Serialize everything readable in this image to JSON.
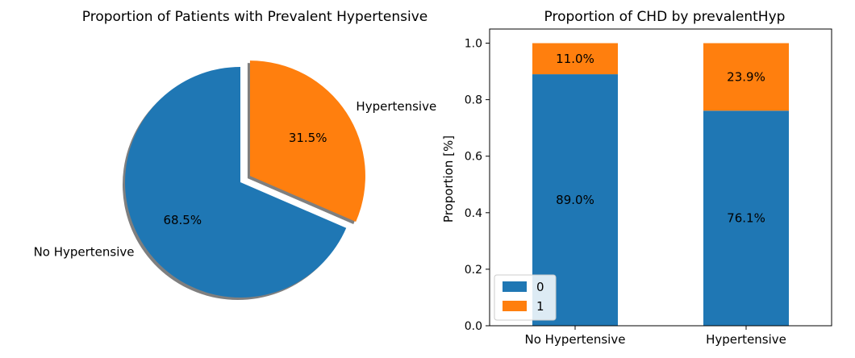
{
  "chart_data": [
    {
      "type": "pie",
      "title": "Proportion of Patients with Prevalent Hypertensive",
      "labels": [
        "No Hypertensive",
        "Hypertensive"
      ],
      "values": [
        68.5,
        31.5
      ],
      "pct_labels": [
        "68.5%",
        "31.5%"
      ],
      "colors": [
        "#1f77b4",
        "#ff7f0e"
      ],
      "explode": [
        0,
        0.1
      ],
      "shadow": true,
      "start_angle_deg": 90
    },
    {
      "type": "bar",
      "stacked": true,
      "title": "Proportion of CHD by prevalentHyp",
      "categories": [
        "No Hypertensive",
        "Hypertensive"
      ],
      "series": [
        {
          "name": "0",
          "values": [
            0.89,
            0.761
          ],
          "labels": [
            "89.0%",
            "76.1%"
          ],
          "color": "#1f77b4"
        },
        {
          "name": "1",
          "values": [
            0.11,
            0.239
          ],
          "labels": [
            "11.0%",
            "23.9%"
          ],
          "color": "#ff7f0e"
        }
      ],
      "ylabel": "Proportion [%]",
      "xlabel": "",
      "ylim": [
        0,
        1.05
      ],
      "yticks": [
        "0.0",
        "0.2",
        "0.4",
        "0.6",
        "0.8",
        "1.0"
      ],
      "legend_position": "lower-left",
      "grid": false
    }
  ]
}
